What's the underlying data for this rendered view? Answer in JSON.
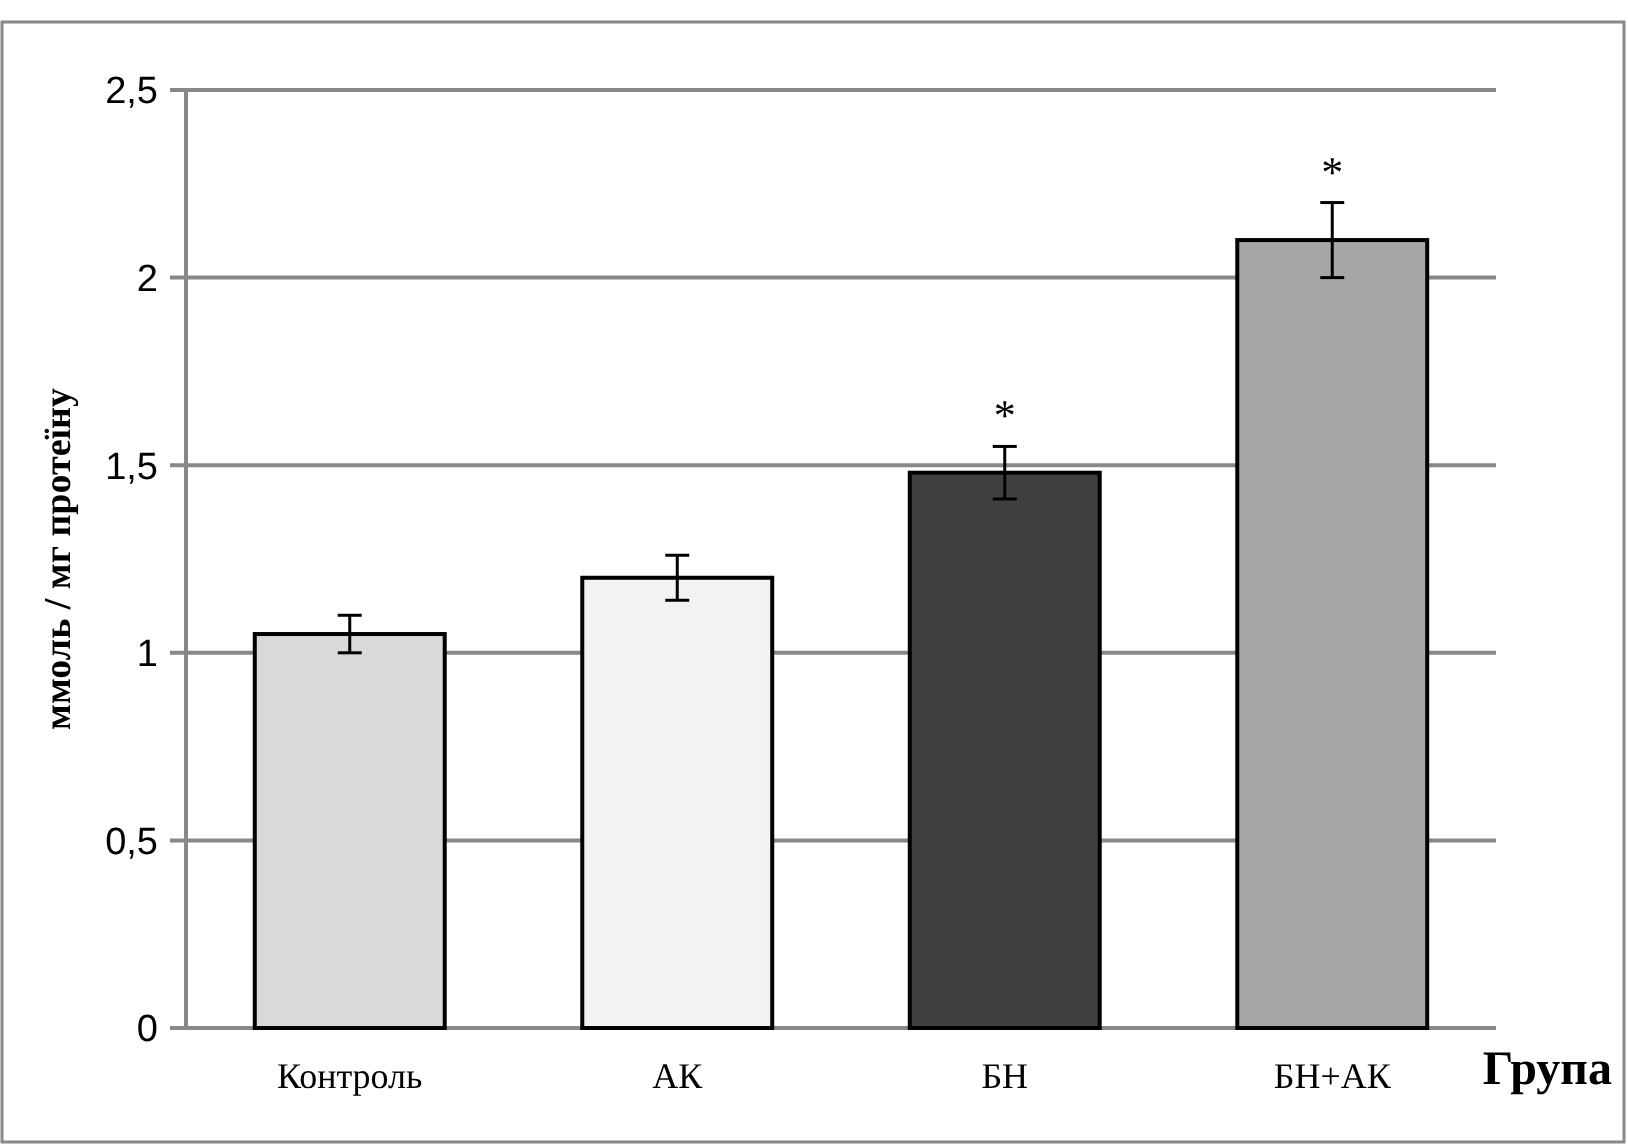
{
  "chart_data": {
    "type": "bar",
    "xlabel": "Група",
    "ylabel": "ммоль / мг протеїну",
    "categories": [
      "Контроль",
      "АК",
      "БН",
      "БН+АК"
    ],
    "values": [
      1.05,
      1.2,
      1.48,
      2.1
    ],
    "errors": [
      0.05,
      0.06,
      0.07,
      0.1
    ],
    "colors": [
      "#d9d9d9",
      "#f2f2f2",
      "#404040",
      "#a6a6a6"
    ],
    "ylim": [
      0,
      2.5
    ],
    "yticks": [
      {
        "value": 0,
        "label": "0"
      },
      {
        "value": 0.5,
        "label": "0,5"
      },
      {
        "value": 1,
        "label": "1"
      },
      {
        "value": 1.5,
        "label": "1,5"
      },
      {
        "value": 2,
        "label": "2"
      },
      {
        "value": 2.5,
        "label": "2,5"
      }
    ],
    "grid": "y",
    "annotations": [
      {
        "text": "*",
        "x": "БН",
        "y": 1.55
      },
      {
        "text": "*",
        "x": "БН+АК",
        "y": 2.2
      }
    ]
  }
}
